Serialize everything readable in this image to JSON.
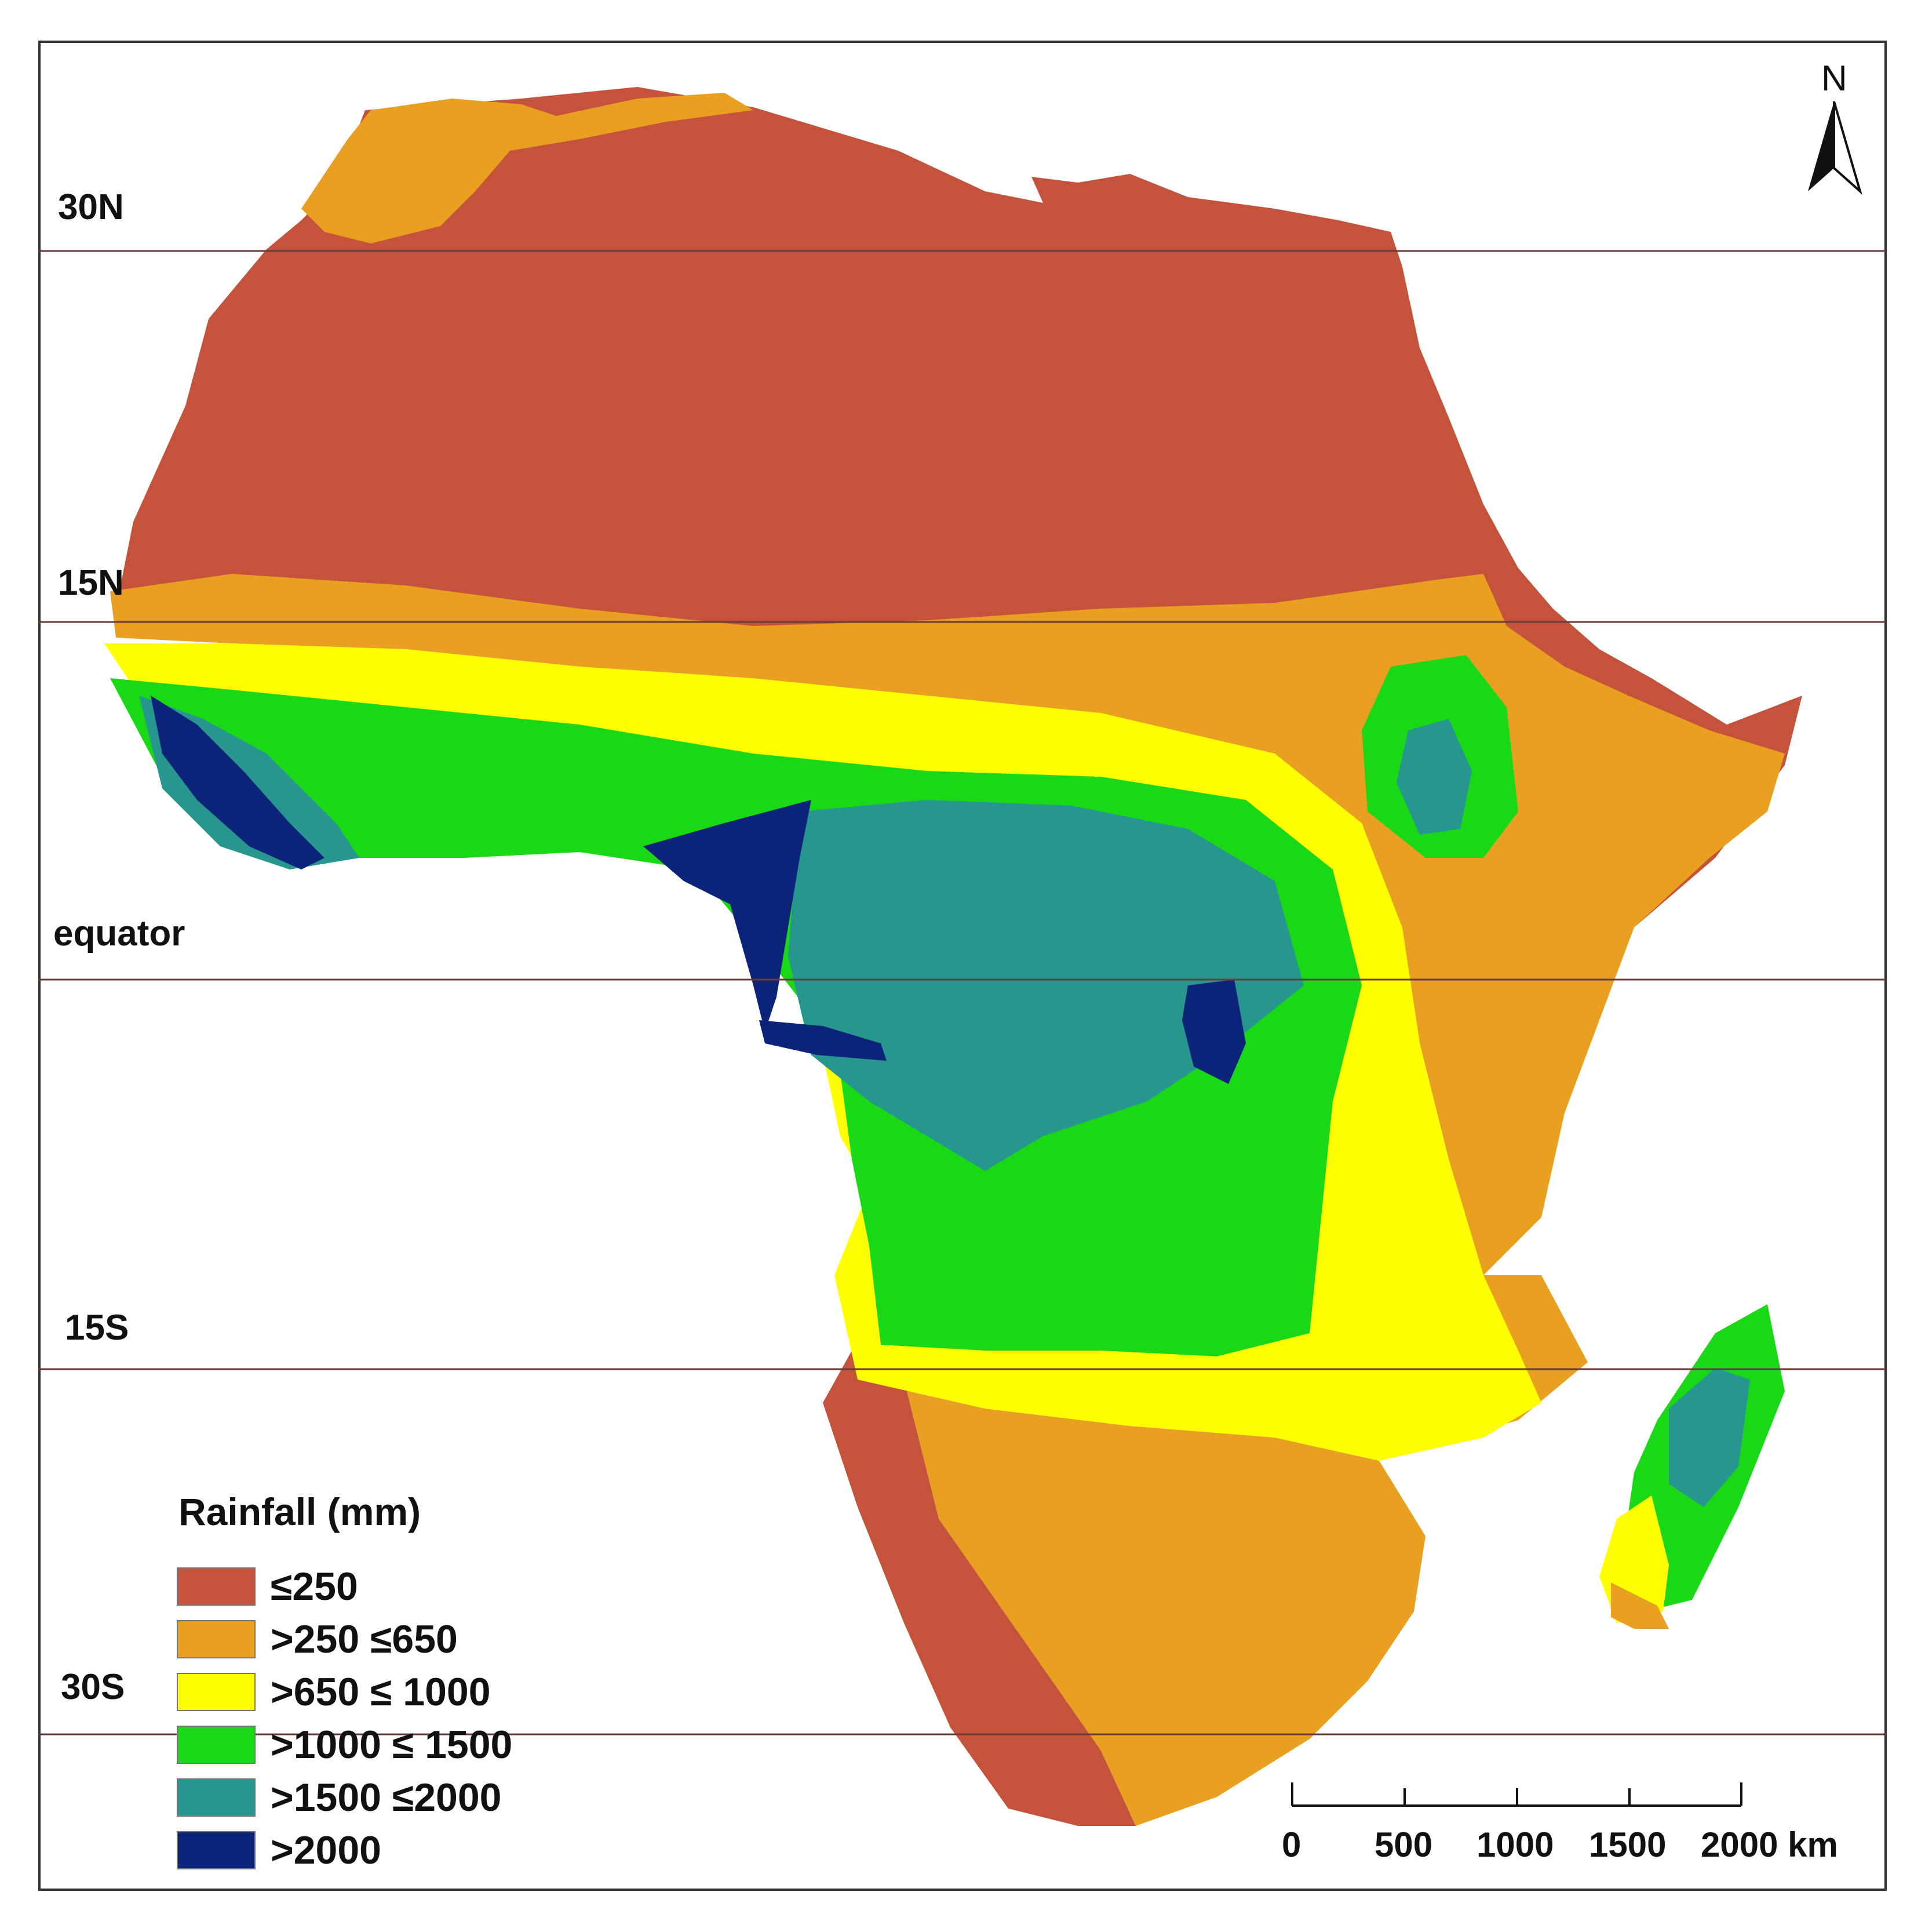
{
  "map": {
    "latitude_labels": [
      "30N",
      "15N",
      "equator",
      "15S",
      "30S"
    ],
    "north_arrow": {
      "letter": "N"
    },
    "legend": {
      "title": "Rainfall (mm)",
      "classes": [
        {
          "label": " ≤250",
          "color": "#C5533B"
        },
        {
          "label": ">250 ≤650",
          "color": "#E9A021"
        },
        {
          "label": ">650 ≤ 1000",
          "color": "#FFFF00"
        },
        {
          "label": ">1000 ≤ 1500",
          "color": "#19D816"
        },
        {
          "label": ">1500 ≤2000",
          "color": "#26968F"
        },
        {
          "label": ">2000",
          "color": "#0B2479"
        }
      ]
    },
    "scale_bar": {
      "tick_labels": [
        "0",
        "500",
        "1000",
        "1500",
        "2000 km"
      ]
    },
    "colors": {
      "frame": "#333333",
      "latitude_line": "#6b3a3a",
      "borders": "#9a9a9a"
    }
  }
}
